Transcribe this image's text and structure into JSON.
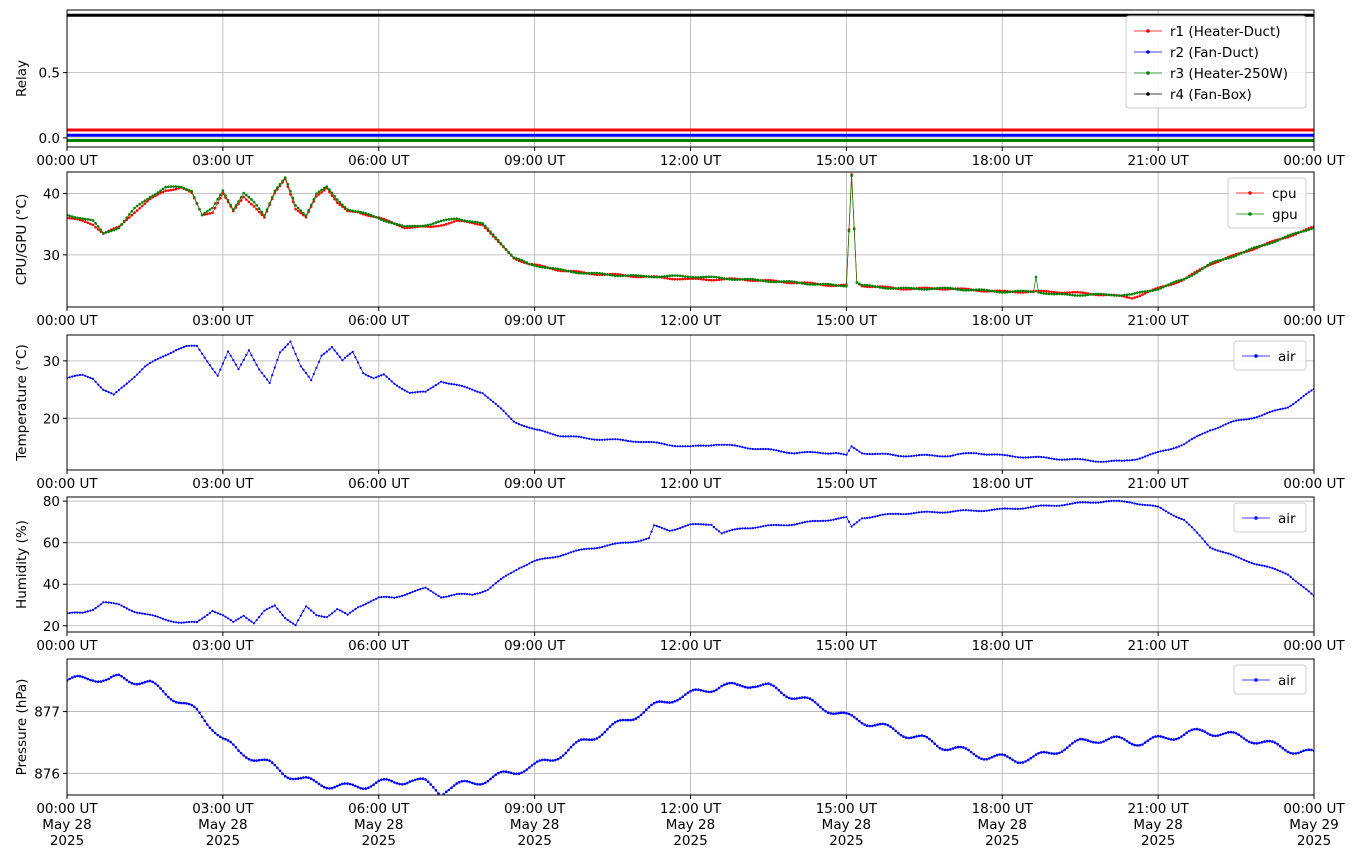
{
  "figure": {
    "background": "#ffffff"
  },
  "chart_data": [
    {
      "type": "line",
      "ylabel": "Relay",
      "ylim": [
        -0.07,
        0.98
      ],
      "yticks": [
        0.0,
        0.5
      ],
      "ytick_labels": [
        "0.0",
        "0.5"
      ],
      "xlim_hours": [
        0,
        24
      ],
      "xtick_labels": [
        "00:00 UT",
        "03:00 UT",
        "06:00 UT",
        "09:00 UT",
        "12:00 UT",
        "15:00 UT",
        "18:00 UT",
        "21:00 UT",
        "00:00 UT"
      ],
      "grid": true,
      "legend_position": "top-right",
      "series": [
        {
          "name": "r1 (Heater-Duct)",
          "color": "#ff0000",
          "x": [
            0,
            24
          ],
          "y": [
            0.06,
            0.06
          ]
        },
        {
          "name": "r2 (Fan-Duct)",
          "color": "#0000ff",
          "x": [
            0,
            24
          ],
          "y": [
            0.02,
            0.02
          ]
        },
        {
          "name": "r3 (Heater-250W)",
          "color": "#008000",
          "x": [
            0,
            24
          ],
          "y": [
            -0.02,
            -0.02
          ]
        },
        {
          "name": "r4 (Fan-Box)",
          "color": "#000000",
          "x": [
            0,
            24
          ],
          "y": [
            0.94,
            0.94
          ]
        }
      ]
    },
    {
      "type": "line",
      "ylabel": "CPU/GPU (°C)",
      "ylim": [
        21.5,
        43.5
      ],
      "yticks": [
        30,
        40
      ],
      "ytick_labels": [
        "30",
        "40"
      ],
      "xlim_hours": [
        0,
        24
      ],
      "xtick_labels": [
        "00:00 UT",
        "03:00 UT",
        "06:00 UT",
        "09:00 UT",
        "12:00 UT",
        "15:00 UT",
        "18:00 UT",
        "21:00 UT",
        "00:00 UT"
      ],
      "grid": true,
      "legend_position": "top-right",
      "series": [
        {
          "name": "cpu",
          "color": "#ff0000",
          "x": [
            0,
            0.3,
            0.5,
            0.7,
            1.0,
            1.3,
            1.6,
            1.9,
            2.2,
            2.4,
            2.6,
            2.8,
            3.0,
            3.2,
            3.4,
            3.6,
            3.8,
            4.0,
            4.2,
            4.4,
            4.6,
            4.8,
            5.0,
            5.2,
            5.4,
            5.6,
            5.8,
            6.0,
            6.5,
            7.0,
            7.5,
            8.0,
            8.3,
            8.6,
            8.9,
            9.2,
            9.5,
            10.0,
            11.0,
            12.0,
            13.0,
            14.0,
            14.8,
            15.0,
            15.1,
            15.2,
            15.3,
            16.0,
            17.0,
            18.0,
            19.0,
            20.0,
            20.5,
            21.0,
            21.5,
            22.0,
            22.5,
            23.0,
            23.5,
            24.0
          ],
          "y": [
            36,
            35.5,
            35,
            33.5,
            34.5,
            37,
            39,
            40.5,
            41,
            40,
            36.5,
            37,
            40,
            37,
            39.5,
            38,
            36,
            40,
            42.5,
            37.5,
            36,
            39.5,
            41,
            38.5,
            37,
            37,
            36.5,
            36,
            34.5,
            34.5,
            35.5,
            35,
            32,
            29.5,
            28.5,
            28,
            27.5,
            27,
            26.5,
            26,
            26,
            25.5,
            25,
            25,
            43,
            25.5,
            25,
            24.5,
            24.5,
            24,
            24,
            23.5,
            23,
            24.5,
            26,
            28.5,
            30,
            31.5,
            33,
            34.5
          ]
        },
        {
          "name": "gpu",
          "color": "#008000",
          "x": [
            0,
            0.3,
            0.5,
            0.7,
            1.0,
            1.3,
            1.6,
            1.9,
            2.2,
            2.4,
            2.6,
            2.8,
            3.0,
            3.2,
            3.4,
            3.6,
            3.8,
            4.0,
            4.2,
            4.4,
            4.6,
            4.8,
            5.0,
            5.2,
            5.4,
            5.6,
            5.8,
            6.0,
            6.5,
            7.0,
            7.5,
            8.0,
            8.3,
            8.6,
            8.9,
            9.2,
            9.5,
            10.0,
            11.0,
            12.0,
            13.0,
            14.0,
            14.8,
            15.0,
            15.1,
            15.2,
            15.3,
            16.0,
            17.0,
            18.0,
            18.6,
            18.65,
            18.7,
            19.0,
            20.0,
            20.5,
            21.0,
            21.5,
            22.0,
            22.5,
            23.0,
            23.5,
            24.0
          ],
          "y": [
            36.5,
            36,
            35.5,
            33.5,
            34.5,
            37.5,
            39.5,
            41,
            41,
            40.5,
            36.5,
            37.5,
            40.5,
            37.5,
            40,
            38.5,
            36.5,
            40.5,
            42.5,
            38,
            36.5,
            40,
            41,
            39,
            37.5,
            37,
            36.5,
            36,
            34.5,
            35,
            36,
            35,
            32.5,
            29.5,
            28.5,
            28,
            27.5,
            27,
            26.5,
            26.5,
            26,
            25.5,
            25,
            25,
            43,
            25.5,
            25,
            24.5,
            24.5,
            24,
            24,
            26.5,
            24,
            23.5,
            23.5,
            23.5,
            24.5,
            26,
            28.5,
            30,
            31.5,
            33,
            34.5
          ]
        }
      ]
    },
    {
      "type": "line",
      "ylabel": "Temperature (°C)",
      "ylim": [
        11,
        34.5
      ],
      "yticks": [
        20,
        30
      ],
      "ytick_labels": [
        "20",
        "30"
      ],
      "xlim_hours": [
        0,
        24
      ],
      "xtick_labels": [
        "00:00 UT",
        "03:00 UT",
        "06:00 UT",
        "09:00 UT",
        "12:00 UT",
        "15:00 UT",
        "18:00 UT",
        "21:00 UT",
        "00:00 UT"
      ],
      "grid": true,
      "legend_position": "top-right",
      "series": [
        {
          "name": "air",
          "color": "#0000ff",
          "x": [
            0,
            0.3,
            0.5,
            0.7,
            0.9,
            1.2,
            1.5,
            1.8,
            2.1,
            2.3,
            2.5,
            2.7,
            2.9,
            3.1,
            3.3,
            3.5,
            3.7,
            3.9,
            4.1,
            4.3,
            4.5,
            4.7,
            4.9,
            5.1,
            5.3,
            5.5,
            5.7,
            5.9,
            6.1,
            6.3,
            6.6,
            6.9,
            7.2,
            7.6,
            8.0,
            8.3,
            8.6,
            9.0,
            9.5,
            10.0,
            11.0,
            12.0,
            12.5,
            13.0,
            14.0,
            14.8,
            15.0,
            15.1,
            15.3,
            16.0,
            17.0,
            17.5,
            18.0,
            19.0,
            20.0,
            20.3,
            20.6,
            21.0,
            21.5,
            22.0,
            22.5,
            23.0,
            23.5,
            24.0
          ],
          "y": [
            27,
            27.5,
            27,
            25,
            24,
            26.5,
            29,
            30.5,
            32,
            32.5,
            32.5,
            30,
            27.5,
            31.5,
            28.5,
            32,
            28.5,
            26,
            31.5,
            33.5,
            29,
            26.5,
            31,
            32.5,
            30,
            31.5,
            28,
            27,
            27.5,
            26,
            24.5,
            24.5,
            26.5,
            25.5,
            24.5,
            22,
            19.5,
            18,
            17,
            16.5,
            16,
            15,
            15.5,
            15,
            14,
            14,
            13.5,
            15,
            14,
            13.5,
            13.5,
            14,
            13.5,
            13,
            12.5,
            12.5,
            13,
            14,
            15.5,
            18,
            19.5,
            20.5,
            22,
            25
          ]
        }
      ]
    },
    {
      "type": "line",
      "ylabel": "Humidity (%)",
      "ylim": [
        17,
        82
      ],
      "yticks": [
        20,
        40,
        60,
        80
      ],
      "ytick_labels": [
        "20",
        "40",
        "60",
        "80"
      ],
      "xlim_hours": [
        0,
        24
      ],
      "xtick_labels": [
        "00:00 UT",
        "03:00 UT",
        "06:00 UT",
        "09:00 UT",
        "12:00 UT",
        "15:00 UT",
        "18:00 UT",
        "21:00 UT",
        "00:00 UT"
      ],
      "grid": true,
      "legend_position": "top-right",
      "series": [
        {
          "name": "air",
          "color": "#0000ff",
          "x": [
            0,
            0.3,
            0.5,
            0.7,
            1.0,
            1.3,
            1.6,
            1.9,
            2.2,
            2.5,
            2.8,
            3.0,
            3.2,
            3.4,
            3.6,
            3.8,
            4.0,
            4.2,
            4.4,
            4.6,
            4.8,
            5.0,
            5.2,
            5.4,
            5.6,
            5.8,
            6.0,
            6.3,
            6.6,
            6.9,
            7.2,
            7.5,
            7.8,
            8.1,
            8.4,
            8.7,
            9.0,
            9.5,
            10.0,
            10.5,
            11.0,
            11.2,
            11.3,
            11.6,
            12.0,
            12.4,
            12.6,
            13.0,
            14.0,
            14.8,
            15.0,
            15.1,
            15.3,
            16.0,
            17.0,
            18.0,
            19.0,
            20.0,
            20.5,
            21.0,
            21.5,
            22.0,
            22.5,
            23.0,
            23.5,
            24.0
          ],
          "y": [
            26,
            26,
            28,
            31.5,
            30,
            27,
            25,
            23,
            21.5,
            21.5,
            27.5,
            25,
            21.5,
            25,
            21.5,
            27,
            29.5,
            24,
            20.5,
            29,
            25,
            24.5,
            28,
            25,
            29,
            31.5,
            33.5,
            33.5,
            36,
            38,
            34,
            35,
            35,
            37.5,
            43,
            48,
            51,
            54,
            57,
            59,
            61,
            62,
            68,
            66,
            68.5,
            69,
            64.5,
            67,
            69,
            71.5,
            72,
            67.5,
            72,
            74,
            75,
            76,
            78,
            80,
            79.5,
            77,
            71,
            58,
            53,
            49,
            45,
            34
          ]
        }
      ]
    },
    {
      "type": "scatter",
      "ylabel": "Pressure (hPa)",
      "ylim": [
        875.65,
        877.85
      ],
      "yticks": [
        876,
        877
      ],
      "ytick_labels": [
        "876",
        "877"
      ],
      "xlim_hours": [
        0,
        24
      ],
      "xtick_labels": [
        "00:00 UT\nMay 28\n2025",
        "03:00 UT\nMay 28\n2025",
        "06:00 UT\nMay 28\n2025",
        "09:00 UT\nMay 28\n2025",
        "12:00 UT\nMay 28\n2025",
        "15:00 UT\nMay 28\n2025",
        "18:00 UT\nMay 28\n2025",
        "21:00 UT\nMay 28\n2025",
        "00:00 UT\nMay 29\n2025"
      ],
      "grid": true,
      "legend_position": "top-right",
      "series": [
        {
          "name": "air",
          "color": "#0000ff",
          "x": [
            0,
            0.5,
            0.8,
            1.0,
            1.3,
            1.6,
            1.9,
            2.2,
            2.5,
            2.8,
            3.0,
            3.3,
            3.6,
            3.9,
            4.2,
            4.5,
            4.8,
            5.1,
            5.4,
            5.7,
            6.0,
            6.3,
            6.6,
            6.9,
            7.1,
            7.2,
            7.3,
            7.5,
            7.8,
            8.1,
            8.4,
            8.7,
            9.0,
            9.3,
            9.6,
            9.9,
            10.2,
            10.5,
            10.8,
            11.1,
            11.4,
            11.7,
            12.0,
            12.3,
            12.6,
            12.9,
            13.2,
            13.5,
            13.8,
            14.1,
            14.4,
            14.7,
            15.0,
            15.3,
            15.6,
            15.9,
            16.2,
            16.5,
            16.8,
            17.1,
            17.4,
            17.7,
            18.0,
            18.3,
            18.6,
            18.9,
            19.2,
            19.5,
            19.8,
            20.1,
            20.4,
            20.7,
            21.0,
            21.3,
            21.6,
            21.9,
            22.2,
            22.5,
            22.8,
            23.1,
            23.4,
            23.7,
            24.0
          ],
          "y": [
            877.5,
            877.55,
            877.5,
            877.55,
            877.5,
            877.45,
            877.3,
            877.15,
            877.0,
            876.75,
            876.55,
            876.35,
            876.25,
            876.15,
            876.0,
            875.9,
            875.85,
            875.8,
            875.78,
            875.8,
            875.85,
            875.85,
            875.9,
            875.85,
            875.75,
            875.68,
            875.75,
            875.8,
            875.85,
            875.9,
            875.98,
            876.05,
            876.12,
            876.22,
            876.35,
            876.5,
            876.62,
            876.75,
            876.88,
            877.0,
            877.12,
            877.22,
            877.28,
            877.35,
            877.42,
            877.4,
            877.45,
            877.4,
            877.3,
            877.22,
            877.12,
            877.02,
            876.92,
            876.85,
            876.78,
            876.7,
            876.62,
            876.55,
            876.45,
            876.4,
            876.33,
            876.27,
            876.25,
            876.22,
            876.25,
            876.32,
            876.42,
            876.5,
            876.55,
            876.55,
            876.52,
            876.5,
            876.55,
            876.6,
            876.65,
            876.68,
            876.65,
            876.6,
            876.55,
            876.48,
            876.42,
            876.35,
            876.32
          ]
        }
      ]
    }
  ]
}
